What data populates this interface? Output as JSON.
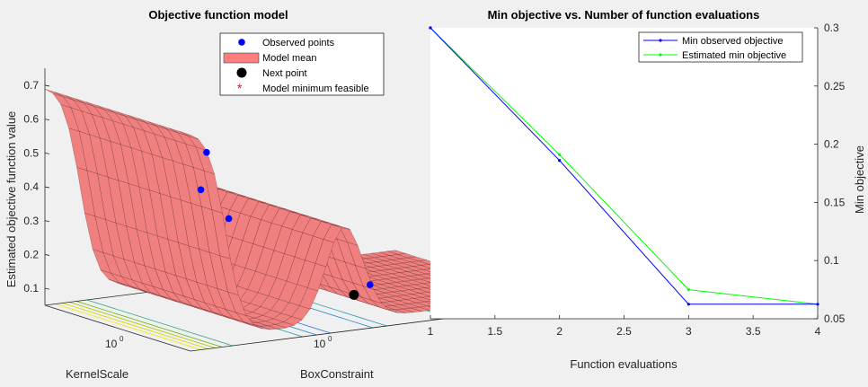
{
  "chart_data": [
    {
      "type": "surface",
      "title": "Objective function model",
      "zlabel": "Estimated objective function value",
      "xlabel": "KernelScale",
      "ylabel": "BoxConstraint",
      "xtick_labels": [
        "10",
        "10"
      ],
      "xtick_exponents": [
        "0",
        "0"
      ],
      "zticks": [
        "0.1",
        "0.2",
        "0.3",
        "0.4",
        "0.5",
        "0.6",
        "0.7"
      ],
      "zlim": [
        0.05,
        0.75
      ],
      "legend": {
        "position": "top-right",
        "entries": [
          {
            "label": "Observed points",
            "marker": "dot",
            "color": "#0000ff"
          },
          {
            "label": "Model mean",
            "marker": "patch",
            "color": "#ff7f7f"
          },
          {
            "label": "Next point",
            "marker": "dot",
            "color": "#000000"
          },
          {
            "label": "Model minimum feasible",
            "marker": "star",
            "color": "#ff0000"
          }
        ]
      },
      "colors": {
        "surface": "#f08080",
        "surface_edge": "#2b0000",
        "observed": "#0000ff",
        "next": "#000000"
      }
    },
    {
      "type": "line",
      "title": "Min objective vs. Number of function evaluations",
      "xlabel": "Function evaluations",
      "ylabel": "Min objective",
      "xlim": [
        1,
        4
      ],
      "ylim": [
        0.05,
        0.3
      ],
      "xticks": [
        1,
        1.5,
        2,
        2.5,
        3,
        3.5,
        4
      ],
      "xtick_labels": [
        "1",
        "1.5",
        "2",
        "2.5",
        "3",
        "3.5",
        "4"
      ],
      "yticks": [
        0.05,
        0.1,
        0.15,
        0.2,
        0.25,
        0.3
      ],
      "ytick_labels": [
        "0.05",
        "0.1",
        "0.15",
        "0.2",
        "0.25",
        "0.3"
      ],
      "yaxis_location": "right",
      "legend_position": "top-right",
      "x": [
        1,
        2,
        3,
        4
      ],
      "series": [
        {
          "name": "Min observed objective",
          "color": "#0000ff",
          "values": [
            0.3,
            0.186,
            0.0625,
            0.0625
          ]
        },
        {
          "name": "Estimated min objective",
          "color": "#00ff00",
          "values": [
            0.3,
            0.191,
            0.075,
            0.0625
          ]
        }
      ]
    }
  ]
}
